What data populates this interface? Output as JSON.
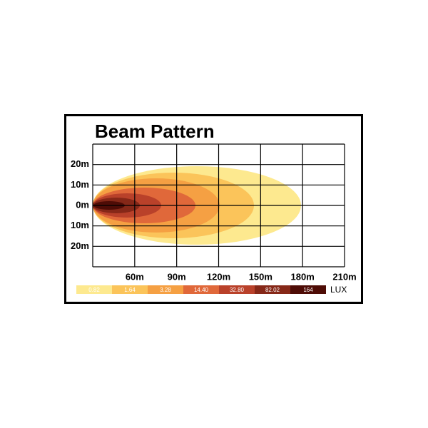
{
  "title": "Beam Pattern",
  "y_labels": [
    "20m",
    "10m",
    "0m",
    "10m",
    "20m"
  ],
  "x_labels": [
    "60m",
    "90m",
    "120m",
    "150m",
    "180m",
    "210m"
  ],
  "legend": {
    "levels": [
      {
        "label": "0.82",
        "color": "#fde98f"
      },
      {
        "label": "1.64",
        "color": "#fbc45a"
      },
      {
        "label": "3.28",
        "color": "#f5a043"
      },
      {
        "label": "14.40",
        "color": "#e0683a"
      },
      {
        "label": "32.80",
        "color": "#b9412a"
      },
      {
        "label": "82.02",
        "color": "#862818"
      },
      {
        "label": "164",
        "color": "#4e0c06"
      }
    ],
    "unit": "LUX"
  }
}
